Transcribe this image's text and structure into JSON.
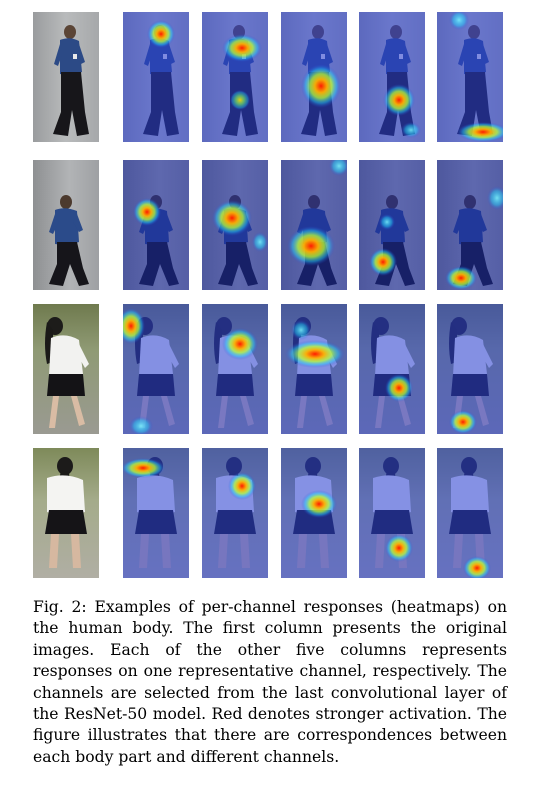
{
  "figure": {
    "rows": [
      {
        "subject": "man-dark-clothing-1"
      },
      {
        "subject": "man-dark-clothing-2"
      },
      {
        "subject": "woman-white-top-1"
      },
      {
        "subject": "woman-white-top-2"
      }
    ]
  },
  "caption": {
    "label": "Fig. 2:",
    "text": "Examples of per-channel responses (heatmaps) on the human body. The first column presents the original images. Each of the other five columns represents responses on one representative channel, respectively. The channels are selected from the last convolutional layer of the ResNet-50 model. Red denotes stronger activation. The figure illustrates that there are correspondences between each body part and different channels."
  }
}
